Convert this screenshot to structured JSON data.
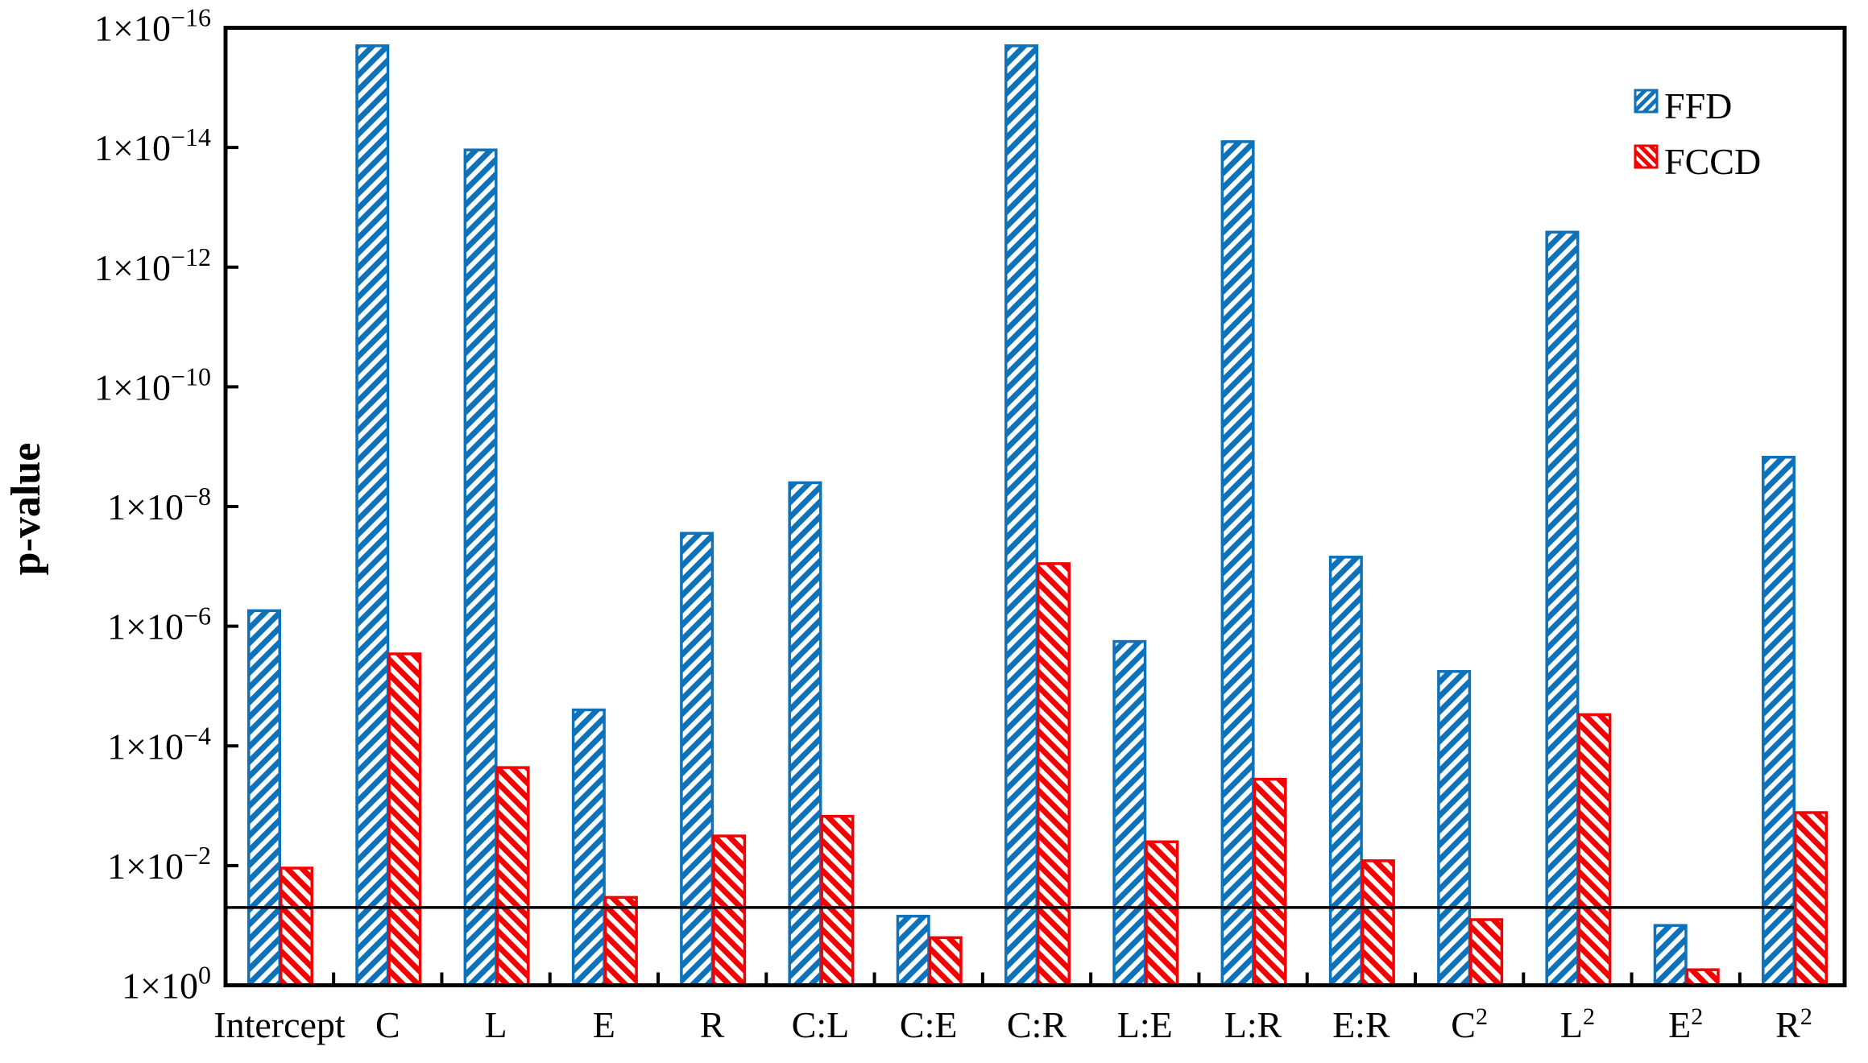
{
  "chart_data": {
    "type": "bar",
    "title": "",
    "xlabel": "",
    "ylabel": "p-value",
    "y_scale": "log10-inverted",
    "y_axis": {
      "mantissa_prefix": "1×10",
      "tick_exponents": [
        -16,
        -14,
        -12,
        -10,
        -8,
        -6,
        -4,
        -2,
        0
      ],
      "top_value": 1e-16,
      "bottom_value": 1
    },
    "categories": [
      "Intercept",
      "C",
      "L",
      "E",
      "R",
      "C:L",
      "C:E",
      "C:R",
      "L:E",
      "L:R",
      "E:R",
      "C^2",
      "L^2",
      "E^2",
      "R^2"
    ],
    "series": [
      {
        "name": "FFD",
        "color": "#0d72b9",
        "hatch": "/",
        "values": [
          5.5e-07,
          2e-16,
          1.1e-14,
          2.5e-05,
          2.8e-08,
          4e-09,
          0.07,
          2e-16,
          1.8e-06,
          8e-15,
          7e-08,
          5.7e-06,
          2.6e-13,
          0.1,
          1.5e-09
        ]
      },
      {
        "name": "FCCD",
        "color": "#f40000",
        "hatch": "\\",
        "values": [
          0.011,
          2.9e-06,
          0.00023,
          0.034,
          0.0032,
          0.0015,
          0.16,
          9e-08,
          0.004,
          0.00036,
          0.0083,
          0.08,
          3e-05,
          0.55,
          0.0013
        ]
      }
    ],
    "reference_line": {
      "value": 0.05,
      "color": "#000000"
    },
    "legend_position": "top-right",
    "grid": "off",
    "frame_color": "#000000",
    "background_color": "#ffffff"
  }
}
